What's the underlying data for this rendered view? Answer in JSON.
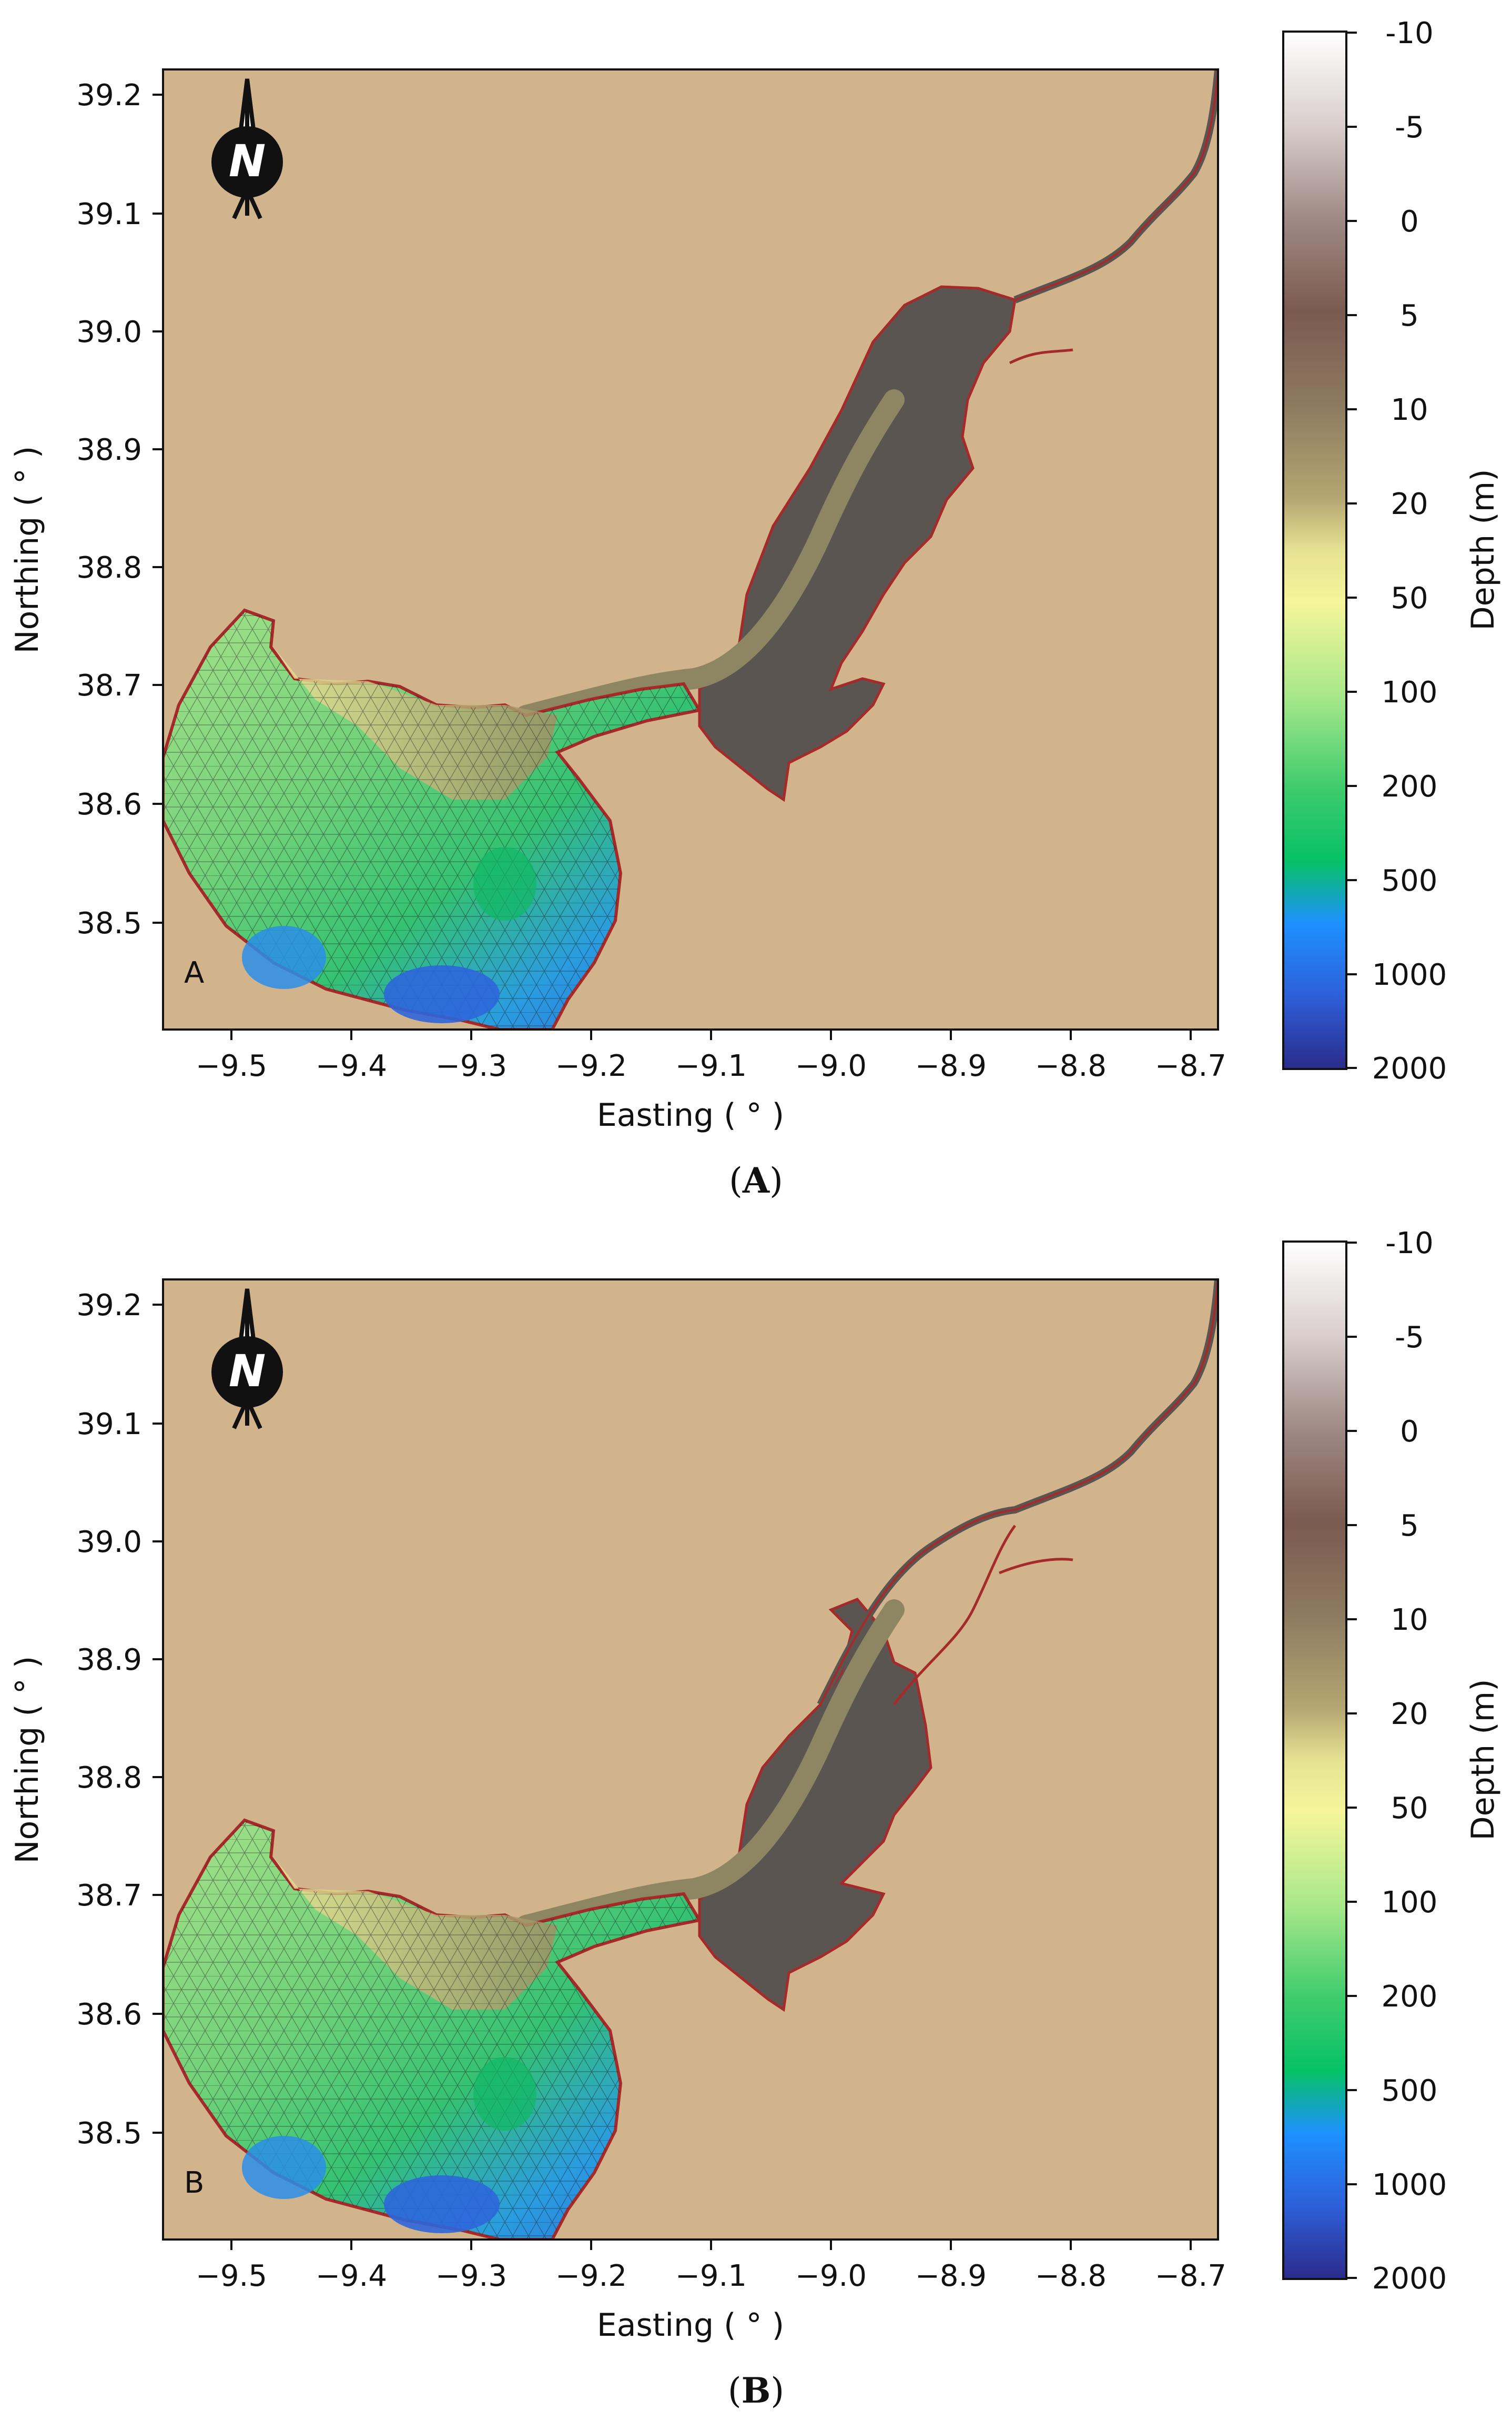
{
  "panels": [
    {
      "id": "A",
      "inset_label": "A",
      "caption_open": "(",
      "caption_letter": "A",
      "caption_close": ")",
      "north_label": "N"
    },
    {
      "id": "B",
      "inset_label": "B",
      "caption_open": "(",
      "caption_letter": "B",
      "caption_close": ")",
      "north_label": "N"
    }
  ],
  "axes": {
    "xlabel": "Easting ( ° )",
    "ylabel": "Northing ( ° )",
    "xticks": [
      "−9.5",
      "−9.4",
      "−9.3",
      "−9.2",
      "−9.1",
      "−9.0",
      "−8.9",
      "−8.8",
      "−8.7"
    ],
    "yticks": [
      "39.2",
      "39.1",
      "39.0",
      "38.9",
      "38.8",
      "38.7",
      "38.6",
      "38.5"
    ]
  },
  "colorbar": {
    "label": "Depth (m)",
    "ticks": [
      "-10",
      "-5",
      "0",
      "5",
      "10",
      "20",
      "50",
      "100",
      "200",
      "500",
      "1000",
      "2000"
    ]
  },
  "colors": {
    "land": "#d2b48c",
    "estuary_shallow": "#5b5552",
    "boundary": "#a52a2a",
    "colorbar_stops": [
      "#ffffff",
      "#d9cfcd",
      "#a08a85",
      "#7b5a50",
      "#8e7a60",
      "#b5a672",
      "#e6e293",
      "#f6f59a",
      "#a8e88a",
      "#3ecb6c",
      "#06c166",
      "#1e90ff",
      "#2e5fd8",
      "#2b2b8c"
    ]
  }
}
